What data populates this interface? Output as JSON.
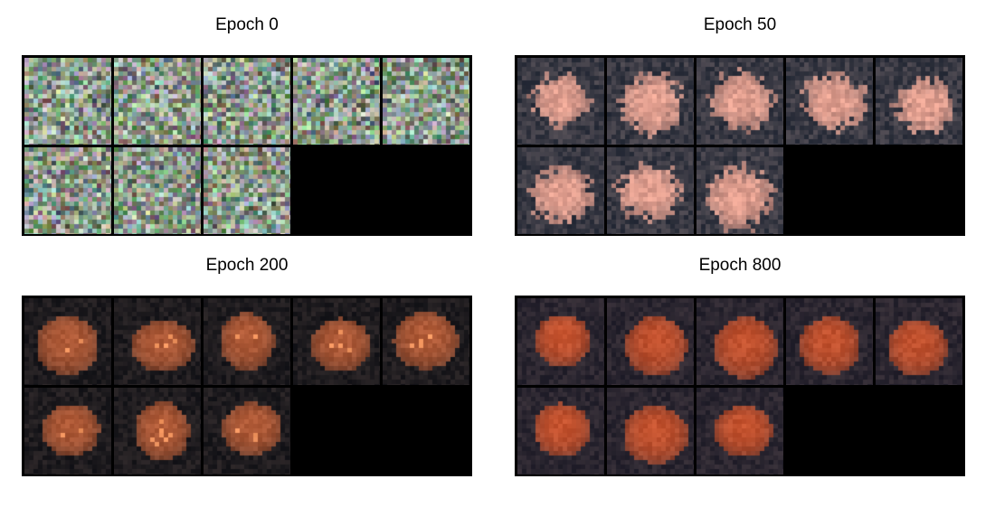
{
  "panels": [
    {
      "title": "Epoch 0",
      "style": "noise",
      "samples": 8
    },
    {
      "title": "Epoch 50",
      "style": "blobs",
      "samples": 8
    },
    {
      "title": "Epoch 200",
      "style": "orange",
      "samples": 8
    },
    {
      "title": "Epoch 800",
      "style": "red",
      "samples": 8
    }
  ],
  "colors": {
    "grid_background": "#000000",
    "noise_base": "#8c9a8c",
    "blob_color": "#e3a090",
    "blob_background": "#3a3a44",
    "orange_color": "#c2623a",
    "orange_background": "#1f1c1f",
    "red_color": "#d8582e",
    "red_background": "#2b2630"
  }
}
